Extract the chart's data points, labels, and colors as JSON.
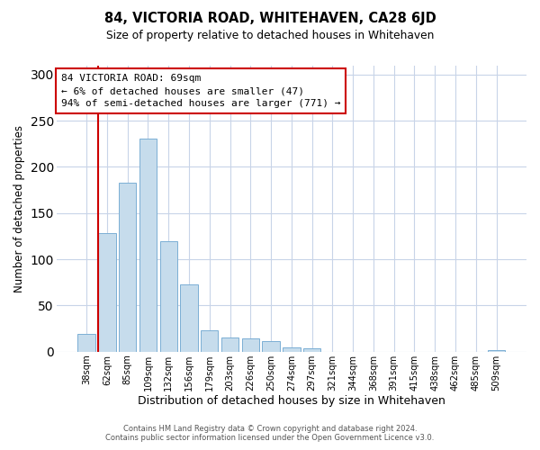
{
  "title": "84, VICTORIA ROAD, WHITEHAVEN, CA28 6JD",
  "subtitle": "Size of property relative to detached houses in Whitehaven",
  "xlabel": "Distribution of detached houses by size in Whitehaven",
  "ylabel": "Number of detached properties",
  "bar_labels": [
    "38sqm",
    "62sqm",
    "85sqm",
    "109sqm",
    "132sqm",
    "156sqm",
    "179sqm",
    "203sqm",
    "226sqm",
    "250sqm",
    "274sqm",
    "297sqm",
    "321sqm",
    "344sqm",
    "368sqm",
    "391sqm",
    "415sqm",
    "438sqm",
    "462sqm",
    "485sqm",
    "509sqm"
  ],
  "bar_heights": [
    19,
    128,
    183,
    231,
    120,
    73,
    23,
    15,
    14,
    11,
    5,
    4,
    0,
    0,
    0,
    0,
    0,
    0,
    0,
    0,
    2
  ],
  "bar_color": "#c6dcec",
  "bar_edge_color": "#7bafd4",
  "vline_color": "#cc0000",
  "ylim": [
    0,
    310
  ],
  "yticks": [
    0,
    50,
    100,
    150,
    200,
    250,
    300
  ],
  "annotation_title": "84 VICTORIA ROAD: 69sqm",
  "annotation_line1": "← 6% of detached houses are smaller (47)",
  "annotation_line2": "94% of semi-detached houses are larger (771) →",
  "annotation_box_color": "#ffffff",
  "annotation_box_edge": "#cc0000",
  "footer_line1": "Contains HM Land Registry data © Crown copyright and database right 2024.",
  "footer_line2": "Contains public sector information licensed under the Open Government Licence v3.0.",
  "background_color": "#ffffff",
  "grid_color": "#c8d4e8"
}
